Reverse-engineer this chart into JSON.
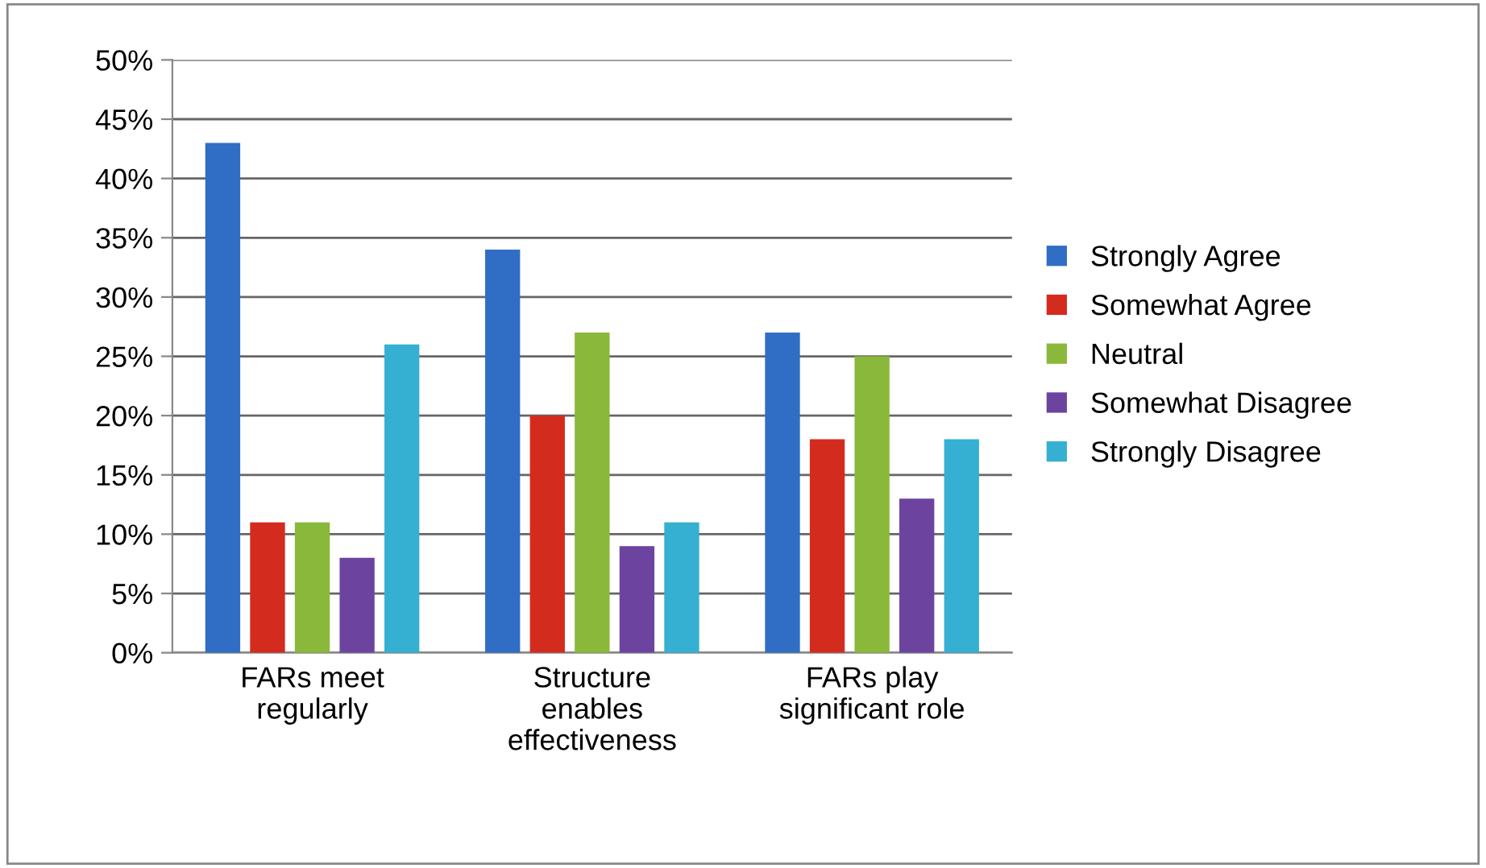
{
  "chart_data": {
    "type": "bar",
    "categories": [
      "FARs meet\nregularly",
      "Structure\nenables\neffectiveness",
      "FARs play\nsignificant role"
    ],
    "series": [
      {
        "name": "Strongly Agree",
        "color": "#2f6ec4",
        "values": [
          43,
          34,
          27
        ]
      },
      {
        "name": "Somewhat Agree",
        "color": "#d42b1f",
        "values": [
          11,
          20,
          18
        ]
      },
      {
        "name": "Neutral",
        "color": "#8ab83a",
        "values": [
          11,
          27,
          25
        ]
      },
      {
        "name": "Somewhat Disagree",
        "color": "#6c44a0",
        "values": [
          8,
          9,
          13
        ]
      },
      {
        "name": "Strongly Disagree",
        "color": "#35b0d2",
        "values": [
          26,
          11,
          18
        ]
      }
    ],
    "ylim": [
      0,
      50
    ],
    "yticks": [
      {
        "value": 0,
        "label": "0%"
      },
      {
        "value": 5,
        "label": "5%"
      },
      {
        "value": 10,
        "label": "10%"
      },
      {
        "value": 15,
        "label": "15%"
      },
      {
        "value": 20,
        "label": "20%"
      },
      {
        "value": 25,
        "label": "25%"
      },
      {
        "value": 30,
        "label": "30%"
      },
      {
        "value": 35,
        "label": "35%"
      },
      {
        "value": 40,
        "label": "40%"
      },
      {
        "value": 45,
        "label": "45%"
      },
      {
        "value": 50,
        "label": "50%"
      }
    ],
    "grid": "y",
    "legend": "right"
  }
}
